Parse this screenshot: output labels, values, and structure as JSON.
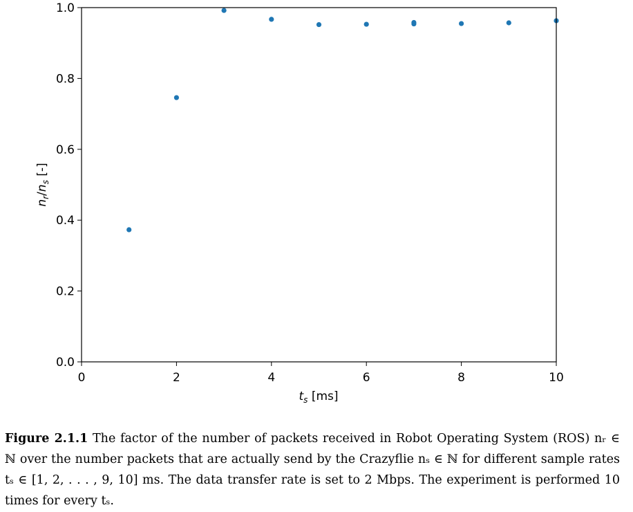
{
  "chart_data": {
    "type": "scatter",
    "title": "",
    "xlabel": "t_s [ms]",
    "ylabel": "n_r/n_s [-]",
    "xlim": [
      0,
      10
    ],
    "ylim": [
      0.0,
      1.0
    ],
    "xticks": [
      "0",
      "2",
      "4",
      "6",
      "8",
      "10"
    ],
    "yticks": [
      "0.0",
      "0.2",
      "0.4",
      "0.6",
      "0.8",
      "1.0"
    ],
    "grid": false,
    "color": "#1f77b4",
    "points": [
      {
        "x": 1,
        "y": 0.373
      },
      {
        "x": 2,
        "y": 0.746
      },
      {
        "x": 3,
        "y": 0.992
      },
      {
        "x": 4,
        "y": 0.967
      },
      {
        "x": 5,
        "y": 0.952
      },
      {
        "x": 6,
        "y": 0.953
      },
      {
        "x": 7,
        "y": 0.954
      },
      {
        "x": 7,
        "y": 0.958
      },
      {
        "x": 8,
        "y": 0.955
      },
      {
        "x": 9,
        "y": 0.957
      },
      {
        "x": 10,
        "y": 0.963
      }
    ]
  },
  "caption": {
    "label": "Figure 2.1.1",
    "text": "The factor of the number of packets received in Robot Operating System (ROS) nᵣ ∈ ℕ over the number packets that are actually send by the Crazyflie nₛ ∈ ℕ for different sample rates tₛ ∈ [1, 2, . . . , 9, 10] ms. The data transfer rate is set to 2 Mbps. The experiment is performed 10 times for every tₛ."
  }
}
